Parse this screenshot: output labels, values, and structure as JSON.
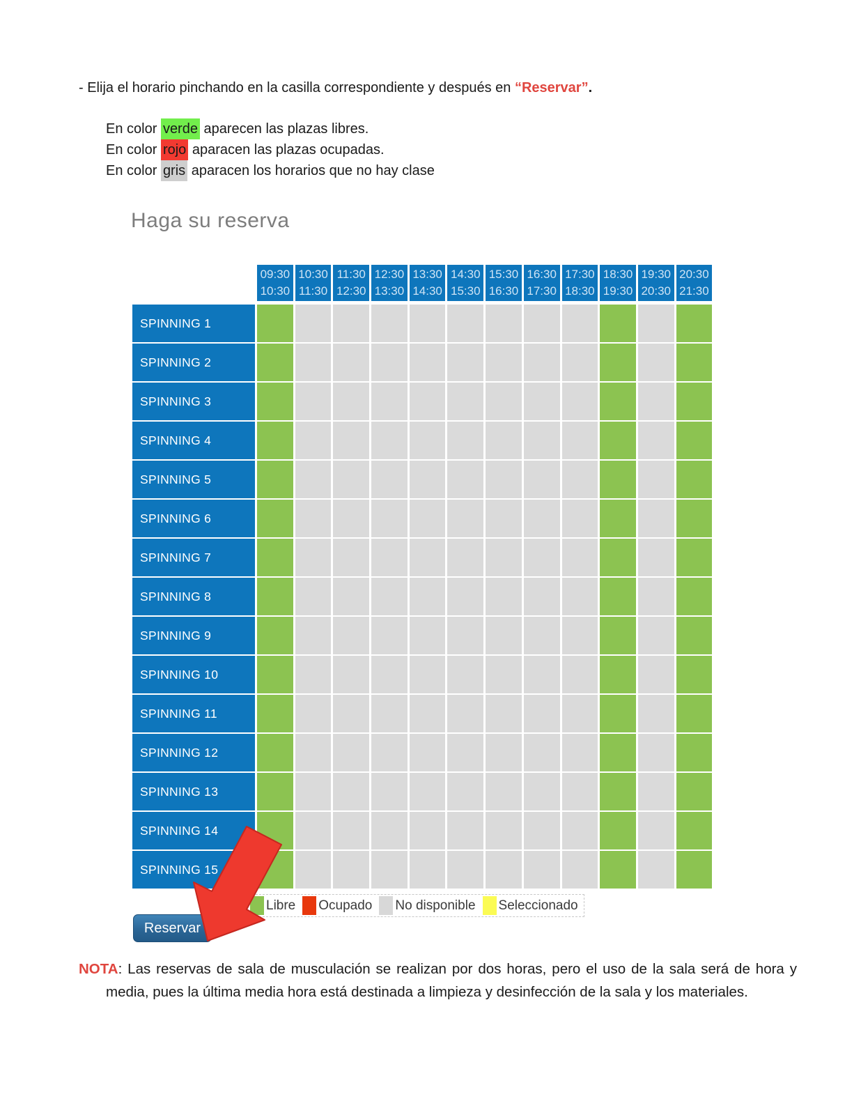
{
  "instruction": {
    "prefix": "- Elija el horario pinchando en la casilla correspondiente y después en ",
    "reservar": "“Reservar”",
    "suffix": ".",
    "highlight_color": "#e0463f"
  },
  "color_lines": [
    {
      "prefix": "En color ",
      "word": "verde",
      "suffix": " aparecen las plazas libres.",
      "highlight_color": "#72ee4c"
    },
    {
      "prefix": "En color ",
      "word": "rojo",
      "suffix": " aparacen las plazas ocupadas.",
      "highlight_color": "#f23a31"
    },
    {
      "prefix": "En color ",
      "word": "gris",
      "suffix": " aparacen los horarios que no hay clase",
      "highlight_color": "#cecece"
    }
  ],
  "booking": {
    "title": "Haga su reserva",
    "time_slots": [
      {
        "start": "09:30",
        "end": "10:30"
      },
      {
        "start": "10:30",
        "end": "11:30"
      },
      {
        "start": "11:30",
        "end": "12:30"
      },
      {
        "start": "12:30",
        "end": "13:30"
      },
      {
        "start": "13:30",
        "end": "14:30"
      },
      {
        "start": "14:30",
        "end": "15:30"
      },
      {
        "start": "15:30",
        "end": "16:30"
      },
      {
        "start": "16:30",
        "end": "17:30"
      },
      {
        "start": "17:30",
        "end": "18:30"
      },
      {
        "start": "18:30",
        "end": "19:30"
      },
      {
        "start": "19:30",
        "end": "20:30"
      },
      {
        "start": "20:30",
        "end": "21:30"
      }
    ],
    "rooms": [
      "SPINNING 1",
      "SPINNING 2",
      "SPINNING 3",
      "SPINNING 4",
      "SPINNING 5",
      "SPINNING 6",
      "SPINNING 7",
      "SPINNING 8",
      "SPINNING 9",
      "SPINNING 10",
      "SPINNING 11",
      "SPINNING 12",
      "SPINNING 13",
      "SPINNING 14",
      "SPINNING 15"
    ],
    "column_states": [
      "free",
      "na",
      "na",
      "na",
      "na",
      "na",
      "na",
      "na",
      "na",
      "free",
      "na",
      "free"
    ],
    "colors": {
      "header_blue": "#0e76bc",
      "free_green": "#8cc351",
      "unavailable_gray": "#dadada"
    }
  },
  "legend": {
    "items": [
      {
        "label": "Libre",
        "state": "free",
        "color": "#8cc351"
      },
      {
        "label": "Ocupado",
        "state": "occupied",
        "color": "#e8380d"
      },
      {
        "label": "No disponible",
        "state": "unavailable",
        "color": "#d8d8d8"
      },
      {
        "label": "Seleccionado",
        "state": "selected",
        "color": "#fbfb54"
      }
    ]
  },
  "reserve_button": {
    "label": "Reservar"
  },
  "arrow_color": "#ee392e",
  "note": {
    "label": "NOTA",
    "text": ": Las reservas de sala de musculación se realizan por dos horas, pero el uso de la sala será de hora y media, pues la última media hora está destinada a limpieza y desinfección de la sala y los materiales."
  }
}
